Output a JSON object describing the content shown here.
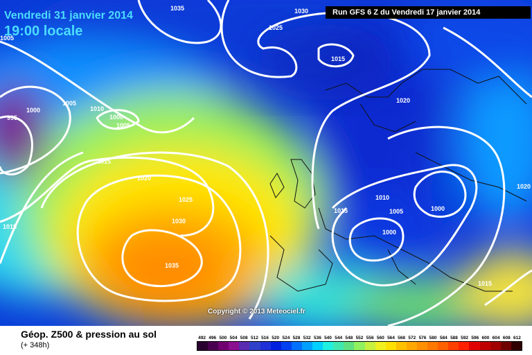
{
  "map": {
    "valid_date": "Vendredi 31 janvier 2014",
    "local_time": "19:00 locale",
    "run": "Run GFS 6 Z du Vendredi 17 janvier 2014",
    "copyright": "Copyright © 2013 Meteociel.fr",
    "isobar_labels": [
      "1035",
      "1030",
      "1025",
      "1005",
      "1015",
      "1005",
      "1010",
      "1000",
      "1005",
      "995",
      "1000",
      "1015",
      "1020",
      "1025",
      "1030",
      "1035",
      "1015",
      "1020",
      "1010",
      "1005",
      "1000",
      "1015",
      "1000",
      "1015",
      "1020"
    ],
    "icons": [
      "coastline-outline",
      "isobar-contour"
    ]
  },
  "legend": {
    "title": "Géop. Z500 & pression au sol",
    "subtitle": "(+ 348h)",
    "values": [
      "492",
      "496",
      "500",
      "504",
      "508",
      "512",
      "516",
      "520",
      "524",
      "528",
      "532",
      "536",
      "540",
      "544",
      "548",
      "552",
      "556",
      "560",
      "564",
      "568",
      "572",
      "576",
      "580",
      "584",
      "588",
      "592",
      "596",
      "600",
      "604",
      "608",
      "612"
    ],
    "colors": [
      "#2a0030",
      "#4a0050",
      "#700070",
      "#8a1090",
      "#5a2ab0",
      "#3040c8",
      "#1f30d8",
      "#0020e0",
      "#0040f0",
      "#0070ff",
      "#00a0ff",
      "#00d0ff",
      "#20f0e0",
      "#40e8b0",
      "#60e080",
      "#90f060",
      "#c8f040",
      "#f0f020",
      "#ffe000",
      "#ffc000",
      "#ffa800",
      "#ff9000",
      "#ff7800",
      "#ff6000",
      "#ff4000",
      "#ff2000",
      "#e00000",
      "#c00000",
      "#a00000",
      "#700000",
      "#300000"
    ]
  }
}
